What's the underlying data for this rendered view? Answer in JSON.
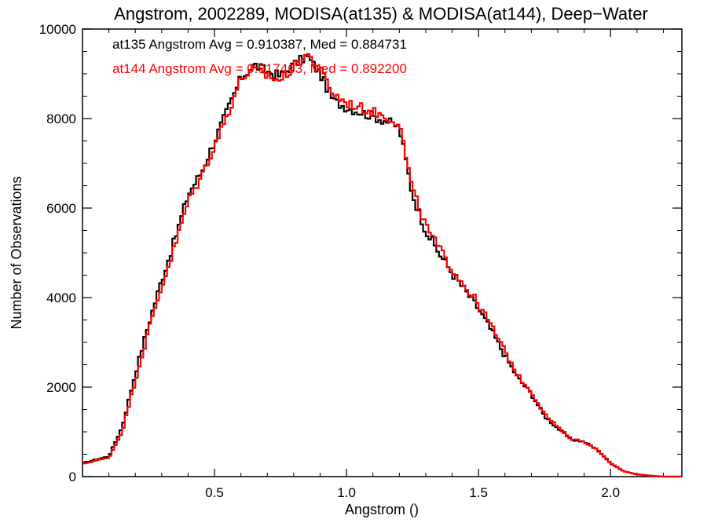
{
  "chart_data": {
    "type": "histogram",
    "title": "Angstrom, 2002289, MODISA(at135) & MODISA(at144), Deep−Water",
    "xlabel": "Angstrom ()",
    "ylabel": "Number of Observations",
    "xlim": [
      0.0,
      2.27
    ],
    "ylim": [
      0,
      10000
    ],
    "xticks": [
      0.5,
      1.0,
      1.5,
      2.0
    ],
    "xtick_labels": [
      "0.5",
      "1.0",
      "1.5",
      "2.0"
    ],
    "yticks": [
      0,
      2000,
      4000,
      6000,
      8000,
      10000
    ],
    "ytick_labels": [
      "0",
      "2000",
      "4000",
      "6000",
      "8000",
      "10000"
    ],
    "grid": false,
    "legend_placement": "top-left",
    "series": [
      {
        "label": "at135 Angstrom Avg = 0.910387, Med = 0.884731",
        "color": "#000000",
        "x": [
          0.0,
          0.05,
          0.1,
          0.15,
          0.2,
          0.25,
          0.3,
          0.35,
          0.4,
          0.45,
          0.5,
          0.55,
          0.6,
          0.65,
          0.7,
          0.75,
          0.8,
          0.85,
          0.9,
          0.95,
          1.0,
          1.05,
          1.1,
          1.15,
          1.2,
          1.25,
          1.3,
          1.35,
          1.4,
          1.45,
          1.5,
          1.55,
          1.6,
          1.65,
          1.7,
          1.75,
          1.8,
          1.85,
          1.9,
          1.95,
          2.0,
          2.05,
          2.1,
          2.15,
          2.2,
          2.27
        ],
        "y": [
          300,
          380,
          450,
          1100,
          2300,
          3400,
          4400,
          5300,
          6300,
          6800,
          7500,
          8200,
          8900,
          9200,
          9050,
          8950,
          9200,
          9400,
          9000,
          8400,
          8250,
          8150,
          8050,
          7950,
          7800,
          6300,
          5500,
          5000,
          4550,
          4150,
          3750,
          3250,
          2700,
          2200,
          1850,
          1350,
          1080,
          830,
          780,
          600,
          300,
          120,
          50,
          20,
          0,
          0
        ]
      },
      {
        "label": "at144 Angstrom Avg = 0.917463, Med = 0.892200",
        "color": "#ff0000",
        "x": [
          0.0,
          0.05,
          0.1,
          0.15,
          0.2,
          0.25,
          0.3,
          0.35,
          0.4,
          0.45,
          0.5,
          0.55,
          0.6,
          0.65,
          0.7,
          0.75,
          0.8,
          0.85,
          0.9,
          0.95,
          1.0,
          1.05,
          1.1,
          1.15,
          1.2,
          1.25,
          1.3,
          1.35,
          1.4,
          1.45,
          1.5,
          1.55,
          1.6,
          1.65,
          1.7,
          1.75,
          1.8,
          1.85,
          1.9,
          1.95,
          2.0,
          2.05,
          2.1,
          2.15,
          2.2,
          2.27
        ],
        "y": [
          280,
          360,
          420,
          1000,
          2150,
          3250,
          4250,
          5150,
          6150,
          6700,
          7400,
          8100,
          8900,
          9100,
          8950,
          8850,
          9150,
          9450,
          9100,
          8550,
          8350,
          8250,
          8150,
          8050,
          7900,
          6400,
          5600,
          5100,
          4650,
          4250,
          3850,
          3350,
          2800,
          2250,
          1900,
          1400,
          1100,
          850,
          780,
          600,
          300,
          120,
          50,
          20,
          0,
          0
        ]
      }
    ]
  }
}
